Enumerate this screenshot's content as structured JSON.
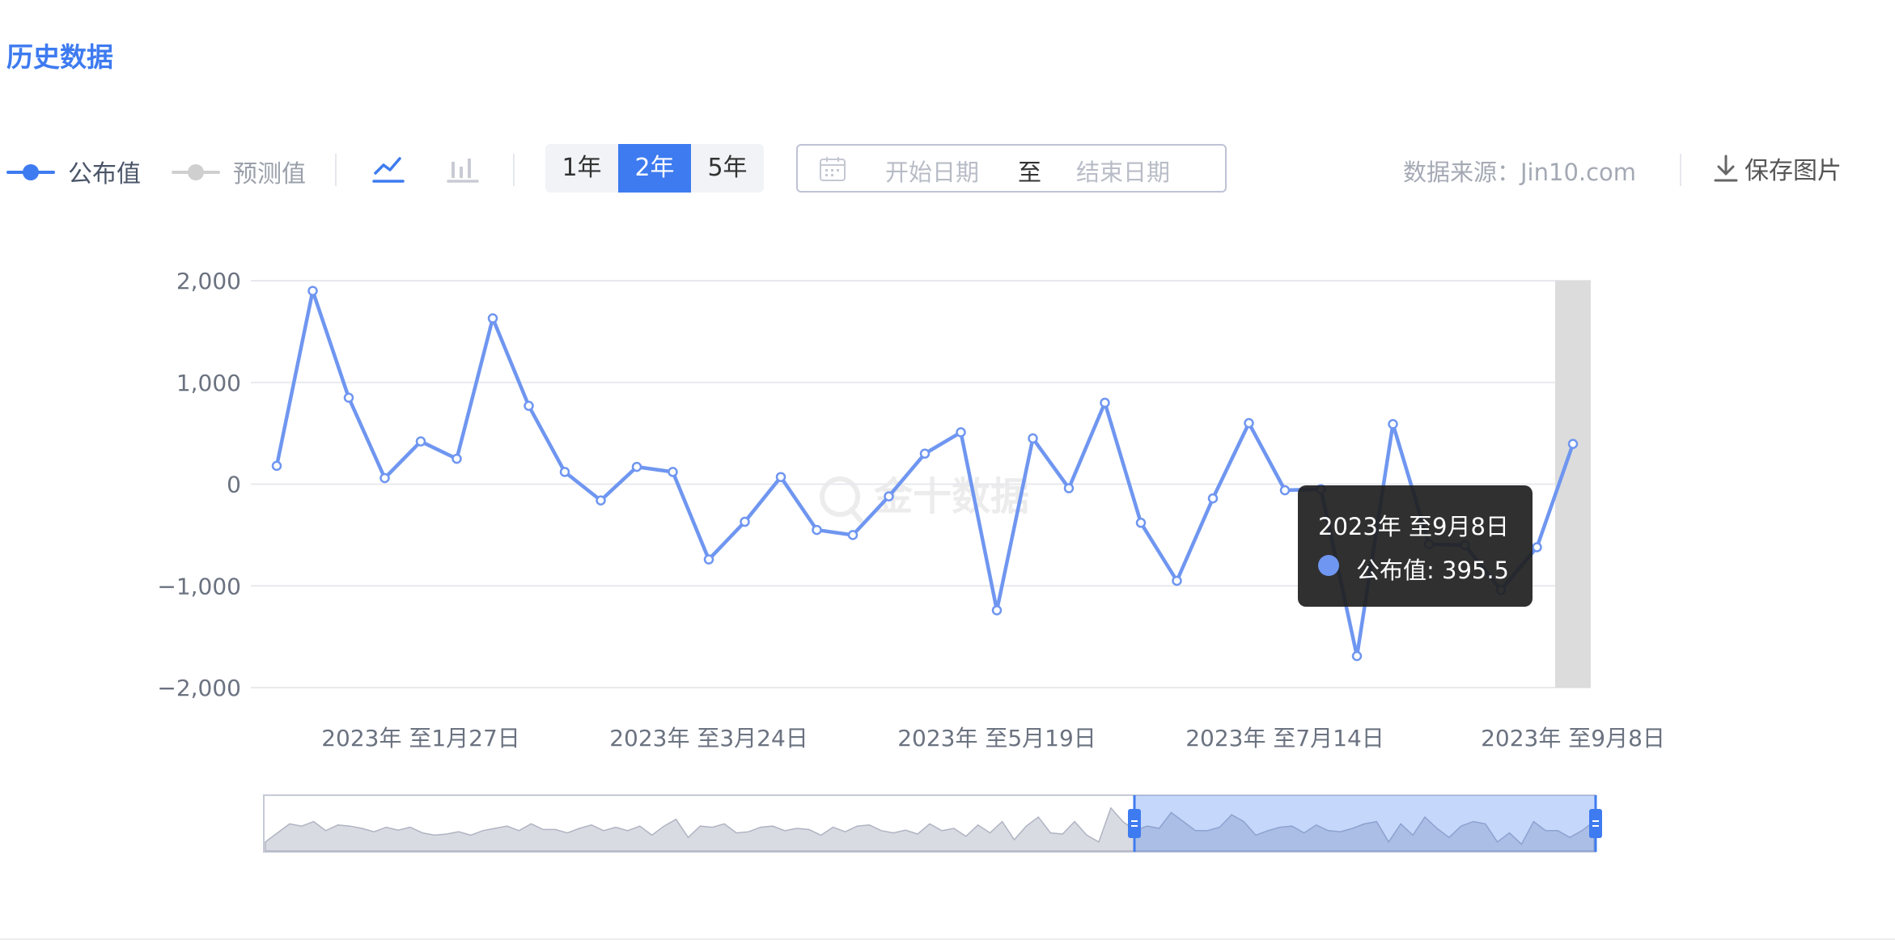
{
  "section_title": "历史数据",
  "legend": {
    "published": "公布值",
    "forecast": "预测值"
  },
  "period_buttons": [
    "1年",
    "2年",
    "5年"
  ],
  "active_period": "2年",
  "date_range": {
    "start_placeholder": "开始日期",
    "separator": "至",
    "end_placeholder": "结束日期"
  },
  "source_text": "数据来源：Jin10.com",
  "save_label": "保存图片",
  "watermark": "金十数据",
  "colors": {
    "accent": "#3E7BF0",
    "series_line": "#6F96F0",
    "forecast_gray": "#CFCFCF"
  },
  "icons": {
    "line_chart": "line-chart-icon",
    "bar_chart": "bar-chart-icon",
    "calendar": "calendar-icon",
    "download": "download-icon"
  },
  "tooltip": {
    "title": "2023年 至9月8日",
    "series_label": "公布值: 395.5"
  },
  "chart_data": {
    "type": "line",
    "ylim": [
      -2000,
      2000
    ],
    "y_ticks": [
      2000,
      1000,
      0,
      -1000,
      -2000
    ],
    "y_tick_labels": [
      "2,000",
      "1,000",
      "0",
      "−1,000",
      "−2,000"
    ],
    "x_tick_labels": [
      "2023年 至1月27日",
      "2023年 至3月24日",
      "2023年 至5月19日",
      "2023年 至7月14日",
      "2023年 至9月8日"
    ],
    "x_tick_indices": [
      4,
      12,
      20,
      28,
      36
    ],
    "grid": true,
    "legend": "top-left",
    "highlighted_index": 36,
    "series": [
      {
        "name": "公布值",
        "values": [
          180,
          1900,
          850,
          60,
          420,
          250,
          1630,
          770,
          120,
          -160,
          170,
          120,
          -740,
          -370,
          70,
          -450,
          -500,
          -120,
          300,
          510,
          -1240,
          450,
          -40,
          800,
          -380,
          -950,
          -140,
          600,
          -60,
          -50,
          -1690,
          590,
          -590,
          -600,
          -1040,
          -620,
          395.5
        ]
      }
    ]
  },
  "overview": {
    "values": [
      -600,
      -200,
      200,
      100,
      300,
      -100,
      150,
      100,
      0,
      -150,
      50,
      -80,
      50,
      -200,
      -300,
      -250,
      -150,
      -300,
      -100,
      0,
      100,
      -100,
      200,
      -50,
      -50,
      -200,
      0,
      150,
      -100,
      50,
      -100,
      100,
      -300,
      100,
      400,
      -400,
      100,
      50,
      200,
      -200,
      -150,
      50,
      100,
      -100,
      0,
      -50,
      -300,
      50,
      -150,
      100,
      150,
      -100,
      -200,
      -80,
      -250,
      200,
      -100,
      0,
      -350,
      150,
      -200,
      300,
      -500,
      100,
      500,
      -200,
      -250,
      300,
      -300,
      -600,
      900,
      300,
      -100,
      100,
      0,
      700,
      300,
      -100,
      -100,
      50,
      600,
      300,
      -300,
      -100,
      50,
      100,
      -200,
      150,
      -100,
      -150,
      0,
      200,
      300,
      -600,
      200,
      -300,
      500,
      0,
      -400,
      100,
      300,
      200,
      -600,
      -200,
      -700,
      300,
      -100,
      -100,
      -400,
      -100,
      300
    ]
  }
}
